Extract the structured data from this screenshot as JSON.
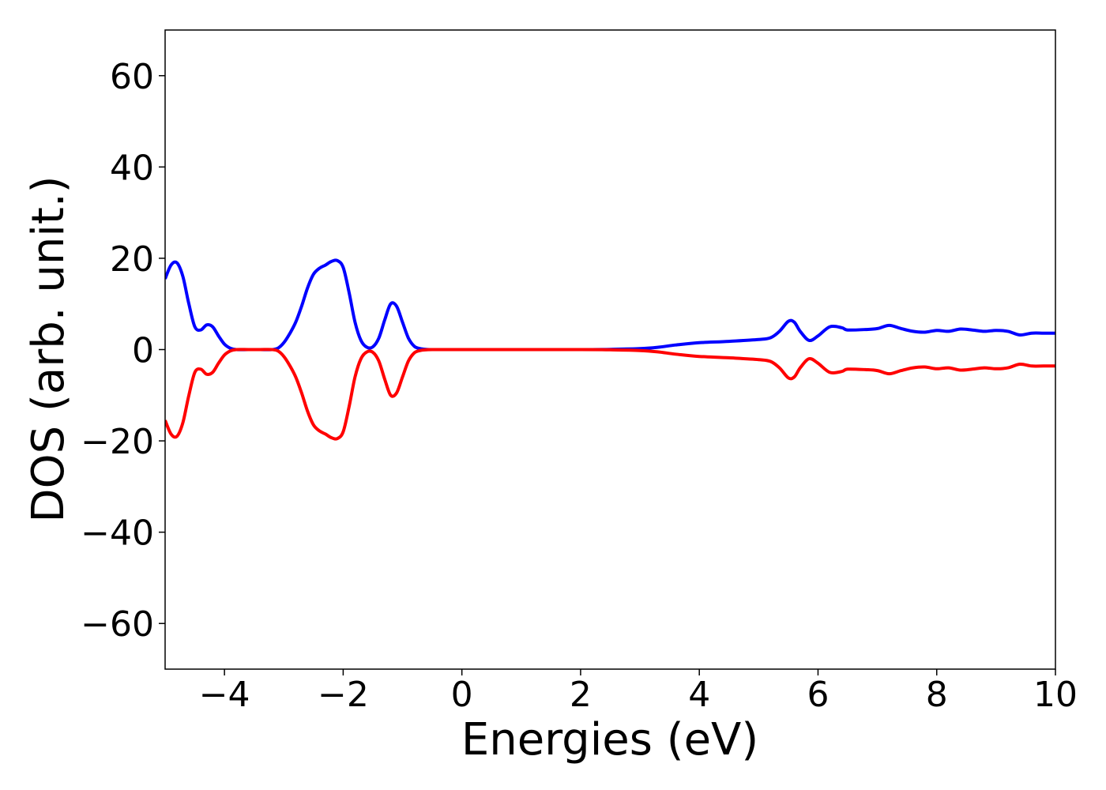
{
  "chart_data": {
    "type": "line",
    "title": "",
    "xlabel": "Energies (eV)",
    "ylabel": "DOS (arb. unit.)",
    "xlim": [
      -5,
      10
    ],
    "ylim": [
      -70,
      70
    ],
    "xticks": [
      -4,
      -2,
      0,
      2,
      4,
      6,
      8,
      10
    ],
    "xtick_labels": [
      "−4",
      "−2",
      "0",
      "2",
      "4",
      "6",
      "8",
      "10"
    ],
    "yticks": [
      -60,
      -40,
      -20,
      0,
      20,
      40,
      60
    ],
    "ytick_labels": [
      "−60",
      "−40",
      "−20",
      "0",
      "20",
      "40",
      "60"
    ],
    "grid": false,
    "legend": "none",
    "series": [
      {
        "color": "#0000ff",
        "x": [
          -5.0,
          -4.9,
          -4.8,
          -4.7,
          -4.6,
          -4.5,
          -4.4,
          -4.3,
          -4.2,
          -4.1,
          -4.0,
          -3.9,
          -3.8,
          -3.6,
          -3.4,
          -3.2,
          -3.1,
          -3.0,
          -2.9,
          -2.8,
          -2.7,
          -2.6,
          -2.5,
          -2.4,
          -2.3,
          -2.2,
          -2.1,
          -2.0,
          -1.9,
          -1.8,
          -1.7,
          -1.6,
          -1.5,
          -1.4,
          -1.3,
          -1.2,
          -1.1,
          -1.0,
          -0.9,
          -0.8,
          -0.7,
          -0.6,
          -0.5,
          0.0,
          1.0,
          2.0,
          2.5,
          3.0,
          3.3,
          3.6,
          4.0,
          4.5,
          5.0,
          5.2,
          5.35,
          5.5,
          5.6,
          5.7,
          5.85,
          6.0,
          6.2,
          6.4,
          6.5,
          6.8,
          7.0,
          7.2,
          7.4,
          7.6,
          7.8,
          8.0,
          8.2,
          8.4,
          8.6,
          8.8,
          9.0,
          9.2,
          9.4,
          9.6,
          9.8,
          10.0
        ],
        "y": [
          15.5,
          18.5,
          19.0,
          16.0,
          10.0,
          5.0,
          4.3,
          5.4,
          5.0,
          3.0,
          1.2,
          0.3,
          0.0,
          0.0,
          0.0,
          0.0,
          0.3,
          1.5,
          3.5,
          6.0,
          9.5,
          13.5,
          16.5,
          17.8,
          18.5,
          19.3,
          19.5,
          18.0,
          12.5,
          6.0,
          2.0,
          0.5,
          0.6,
          2.5,
          6.5,
          10.0,
          9.5,
          6.0,
          2.5,
          0.7,
          0.2,
          0.05,
          0.0,
          0.0,
          0.0,
          0.0,
          0.05,
          0.2,
          0.5,
          1.0,
          1.5,
          1.8,
          2.2,
          2.6,
          4.0,
          6.2,
          6.0,
          4.0,
          2.0,
          3.0,
          5.0,
          4.8,
          4.3,
          4.4,
          4.6,
          5.3,
          4.6,
          4.0,
          3.8,
          4.2,
          4.0,
          4.5,
          4.3,
          4.0,
          4.2,
          4.0,
          3.2,
          3.6,
          3.6,
          3.6
        ]
      },
      {
        "color": "#ff0000",
        "x": [
          -5.0,
          -4.9,
          -4.8,
          -4.7,
          -4.6,
          -4.5,
          -4.4,
          -4.3,
          -4.2,
          -4.1,
          -4.0,
          -3.9,
          -3.8,
          -3.6,
          -3.4,
          -3.2,
          -3.1,
          -3.0,
          -2.9,
          -2.8,
          -2.7,
          -2.6,
          -2.5,
          -2.4,
          -2.3,
          -2.2,
          -2.1,
          -2.0,
          -1.9,
          -1.8,
          -1.7,
          -1.6,
          -1.5,
          -1.4,
          -1.3,
          -1.2,
          -1.1,
          -1.0,
          -0.9,
          -0.8,
          -0.7,
          -0.6,
          -0.5,
          0.0,
          1.0,
          2.0,
          2.5,
          3.0,
          3.3,
          3.6,
          4.0,
          4.5,
          5.0,
          5.2,
          5.35,
          5.5,
          5.6,
          5.7,
          5.85,
          6.0,
          6.2,
          6.4,
          6.5,
          6.8,
          7.0,
          7.2,
          7.4,
          7.6,
          7.8,
          8.0,
          8.2,
          8.4,
          8.6,
          8.8,
          9.0,
          9.2,
          9.4,
          9.6,
          9.8,
          10.0
        ],
        "y": [
          -15.5,
          -18.5,
          -19.0,
          -16.0,
          -10.0,
          -5.0,
          -4.3,
          -5.4,
          -5.0,
          -3.0,
          -1.2,
          -0.3,
          0.0,
          0.0,
          0.0,
          0.0,
          -0.3,
          -1.5,
          -3.5,
          -6.0,
          -9.5,
          -13.5,
          -16.5,
          -17.8,
          -18.5,
          -19.3,
          -19.5,
          -18.0,
          -12.5,
          -6.0,
          -2.0,
          -0.5,
          -0.6,
          -2.5,
          -6.5,
          -10.0,
          -9.5,
          -6.0,
          -2.5,
          -0.7,
          -0.2,
          -0.05,
          0.0,
          0.0,
          0.0,
          0.0,
          -0.05,
          -0.2,
          -0.5,
          -1.0,
          -1.5,
          -1.8,
          -2.2,
          -2.6,
          -4.0,
          -6.2,
          -6.0,
          -4.0,
          -2.0,
          -3.0,
          -5.0,
          -4.8,
          -4.3,
          -4.4,
          -4.6,
          -5.3,
          -4.6,
          -4.0,
          -3.8,
          -4.2,
          -4.0,
          -4.5,
          -4.3,
          -4.0,
          -4.2,
          -4.0,
          -3.2,
          -3.6,
          -3.6,
          -3.6
        ]
      }
    ]
  }
}
